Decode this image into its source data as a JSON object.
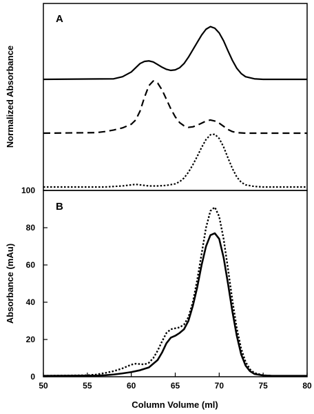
{
  "chart_data": [
    {
      "type": "line",
      "panel_label": "A",
      "ylabel": "Normalized Absorbance",
      "xlim": [
        50,
        80
      ],
      "y_ticks_shown": false,
      "grid": false,
      "series": [
        {
          "style": "solid",
          "baseline_offset": 2.0,
          "x": [
            50,
            58,
            59,
            60,
            60.5,
            61,
            61.5,
            62,
            62.5,
            63,
            63.5,
            64,
            64.5,
            65,
            65.5,
            66,
            66.5,
            67,
            67.5,
            68,
            68.5,
            69,
            69.5,
            70,
            70.5,
            71,
            71.5,
            72,
            72.5,
            73,
            74,
            75,
            80
          ],
          "y": [
            0.0,
            0.01,
            0.05,
            0.14,
            0.22,
            0.3,
            0.34,
            0.35,
            0.33,
            0.28,
            0.23,
            0.19,
            0.17,
            0.18,
            0.22,
            0.3,
            0.42,
            0.56,
            0.7,
            0.84,
            0.95,
            1.0,
            0.97,
            0.88,
            0.73,
            0.54,
            0.36,
            0.21,
            0.11,
            0.05,
            0.01,
            0.0,
            0.0
          ]
        },
        {
          "style": "dashed",
          "baseline_offset": 1.0,
          "x": [
            50,
            56,
            57,
            58,
            59,
            60,
            60.5,
            61,
            61.5,
            62,
            62.5,
            63,
            63.5,
            64,
            64.5,
            65,
            65.5,
            66,
            66.5,
            67,
            67.5,
            68,
            68.5,
            69,
            69.5,
            70,
            70.5,
            71,
            71.5,
            72,
            73,
            74,
            80
          ],
          "y": [
            0.0,
            0.01,
            0.03,
            0.06,
            0.1,
            0.17,
            0.25,
            0.42,
            0.68,
            0.9,
            0.99,
            0.95,
            0.82,
            0.64,
            0.46,
            0.31,
            0.2,
            0.14,
            0.11,
            0.12,
            0.15,
            0.19,
            0.23,
            0.25,
            0.23,
            0.19,
            0.13,
            0.07,
            0.03,
            0.01,
            0.0,
            0.0,
            0.0
          ]
        },
        {
          "style": "dotted",
          "baseline_offset": 0.0,
          "x": [
            50,
            57,
            58,
            59,
            60,
            60.5,
            61,
            62,
            63,
            64,
            65,
            65.5,
            66,
            66.5,
            67,
            67.5,
            68,
            68.5,
            69,
            69.5,
            70,
            70.5,
            71,
            71.5,
            72,
            72.5,
            73,
            74,
            75,
            80
          ],
          "y": [
            0.0,
            0.0,
            0.01,
            0.02,
            0.04,
            0.05,
            0.04,
            0.02,
            0.02,
            0.03,
            0.06,
            0.1,
            0.17,
            0.28,
            0.42,
            0.58,
            0.75,
            0.9,
            0.99,
            1.0,
            0.92,
            0.76,
            0.55,
            0.35,
            0.19,
            0.09,
            0.04,
            0.01,
            0.0,
            0.0
          ]
        }
      ]
    },
    {
      "type": "line",
      "panel_label": "B",
      "xlabel": "Column Volume (ml)",
      "ylabel": "Absorbance (mAu)",
      "xlim": [
        50,
        80
      ],
      "ylim": [
        0,
        100
      ],
      "x_ticks": [
        50,
        55,
        60,
        65,
        70,
        75,
        80
      ],
      "y_ticks": [
        0,
        20,
        40,
        60,
        80,
        100
      ],
      "grid": false,
      "series": [
        {
          "style": "solid",
          "x": [
            50,
            56,
            57,
            58,
            59,
            60,
            61,
            62,
            63,
            63.5,
            64,
            64.5,
            65,
            65.5,
            66,
            66.5,
            67,
            67.5,
            68,
            68.5,
            69,
            69.5,
            70,
            70.5,
            71,
            71.5,
            72,
            72.5,
            73,
            73.5,
            74,
            75,
            76,
            80
          ],
          "y": [
            0.5,
            0.6,
            0.8,
            1.2,
            1.8,
            2.5,
            3.5,
            5.0,
            9.0,
            13.0,
            18.0,
            21.0,
            22.0,
            23.5,
            25.5,
            30.0,
            38.0,
            48.0,
            60.0,
            70.0,
            76.0,
            77.0,
            74.0,
            64.0,
            50.0,
            35.0,
            22.0,
            12.0,
            6.0,
            3.0,
            1.5,
            0.7,
            0.5,
            0.5
          ]
        },
        {
          "style": "dotted",
          "x": [
            50,
            55,
            56,
            57,
            58,
            59,
            59.5,
            60,
            60.5,
            61,
            61.5,
            62,
            62.5,
            63,
            63.5,
            64,
            64.5,
            65,
            65.5,
            66,
            66.5,
            67,
            67.5,
            68,
            68.5,
            69,
            69.5,
            70,
            70.5,
            71,
            71.5,
            72,
            72.5,
            73,
            73.5,
            74,
            75,
            76,
            80
          ],
          "y": [
            0.5,
            0.8,
            1.2,
            2.0,
            3.0,
            4.5,
            5.5,
            6.5,
            7.0,
            6.8,
            6.6,
            7.5,
            10.0,
            14.0,
            19.0,
            23.5,
            25.5,
            26.0,
            26.5,
            28.0,
            32.0,
            40.0,
            52.0,
            66.0,
            80.0,
            89.0,
            91.0,
            86.0,
            74.0,
            58.0,
            41.0,
            26.0,
            15.0,
            8.0,
            4.0,
            2.0,
            0.8,
            0.5,
            0.5
          ]
        }
      ]
    }
  ]
}
